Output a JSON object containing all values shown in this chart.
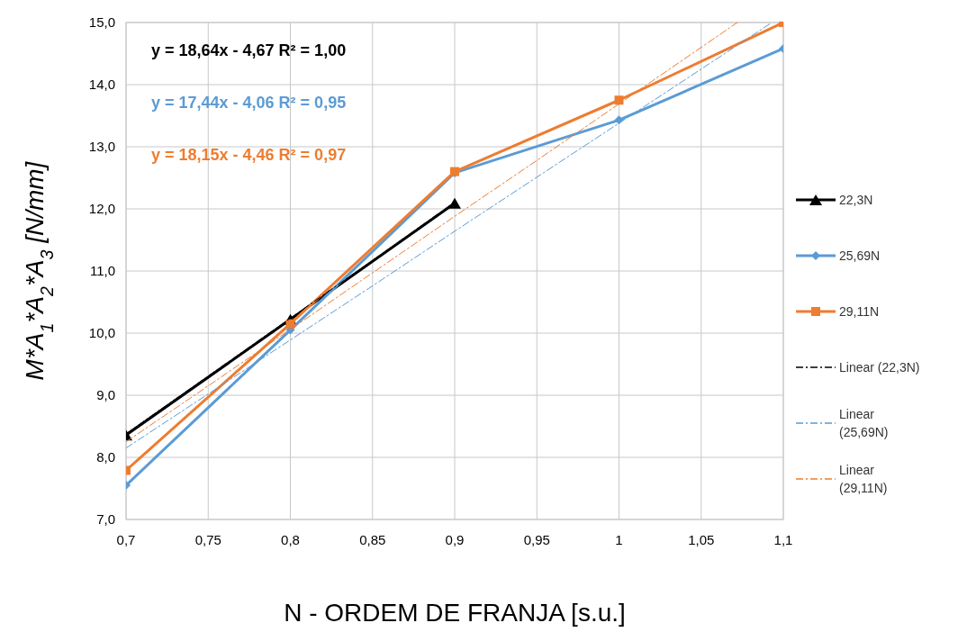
{
  "chart_data": {
    "type": "line",
    "xlabel": "N - ORDEM DE FRANJA   [s.u.]",
    "ylabel": "M*A$_{1}$*A$_{2}$*A$_{3}$   [N/mm]",
    "xlim": [
      0.7,
      1.1
    ],
    "ylim": [
      7,
      15
    ],
    "xticks": [
      {
        "value": 0.7,
        "label": "0,7"
      },
      {
        "value": 0.75,
        "label": "0,75"
      },
      {
        "value": 0.8,
        "label": "0,8"
      },
      {
        "value": 0.85,
        "label": "0,85"
      },
      {
        "value": 0.9,
        "label": "0,9"
      },
      {
        "value": 0.95,
        "label": "0,95"
      },
      {
        "value": 1,
        "label": "1"
      },
      {
        "value": 1.05,
        "label": "1,05"
      },
      {
        "value": 1.1,
        "label": "1,1"
      }
    ],
    "yticks": [
      {
        "value": 7,
        "label": "7,0"
      },
      {
        "value": 8,
        "label": "8,0"
      },
      {
        "value": 9,
        "label": "9,0"
      },
      {
        "value": 10,
        "label": "10,0"
      },
      {
        "value": 11,
        "label": "11,0"
      },
      {
        "value": 12,
        "label": "12,0"
      },
      {
        "value": 13,
        "label": "13,0"
      },
      {
        "value": 14,
        "label": "14,0"
      },
      {
        "value": 15,
        "label": "15,0"
      }
    ],
    "grid": true,
    "legend": "right",
    "annotations": [
      "y = 18,64x - 4,67  R² = 1,00",
      "y = 17,44x - 4,06  R² = 0,95",
      "y = 18,15x - 4,46  R² = 0,97"
    ],
    "series": [
      {
        "name": "22,3N",
        "color": "#000000",
        "x": [
          0.7,
          0.8,
          0.9
        ],
        "values": [
          8.36,
          10.22,
          12.09
        ],
        "marker": "triangle",
        "line_style": "solid"
      },
      {
        "name": "25,69N",
        "color": "#5b9bd5",
        "x": [
          0.7,
          0.8,
          0.9,
          1.0,
          1.1
        ],
        "values": [
          7.55,
          10.05,
          12.58,
          13.43,
          14.58
        ],
        "marker": "diamond",
        "line_style": "solid"
      },
      {
        "name": "29,11N",
        "color": "#ed7d31",
        "x": [
          0.7,
          0.8,
          0.9,
          1.0,
          1.1
        ],
        "values": [
          7.79,
          10.15,
          12.6,
          13.75,
          15.0
        ],
        "marker": "square",
        "line_style": "solid"
      },
      {
        "name": "Linear (22,3N)",
        "color": "#000000",
        "x": [
          0.7,
          0.75,
          0.8,
          0.85,
          0.9
        ],
        "values": [
          8.38,
          9.31,
          10.24,
          11.17,
          12.11
        ],
        "marker": "none",
        "line_style": "dashed"
      },
      {
        "name": "Linear (25,69N)",
        "color": "#5b9bd5",
        "x": [
          0.7,
          0.75,
          0.8,
          0.85,
          0.9,
          0.95,
          1.0,
          1.05,
          1.093
        ],
        "values": [
          8.15,
          9.02,
          9.89,
          10.76,
          11.64,
          12.51,
          13.38,
          14.25,
          15.0
        ],
        "marker": "none",
        "line_style": "dashed"
      },
      {
        "name": "Linear (29,11N)",
        "color": "#ed7d31",
        "x": [
          0.7,
          0.75,
          0.8,
          0.85,
          0.9,
          0.95,
          1.0,
          1.05,
          1.072
        ],
        "values": [
          8.25,
          9.15,
          10.06,
          10.97,
          11.88,
          12.78,
          13.69,
          14.6,
          15.0
        ],
        "marker": "none",
        "line_style": "dashed"
      }
    ]
  }
}
